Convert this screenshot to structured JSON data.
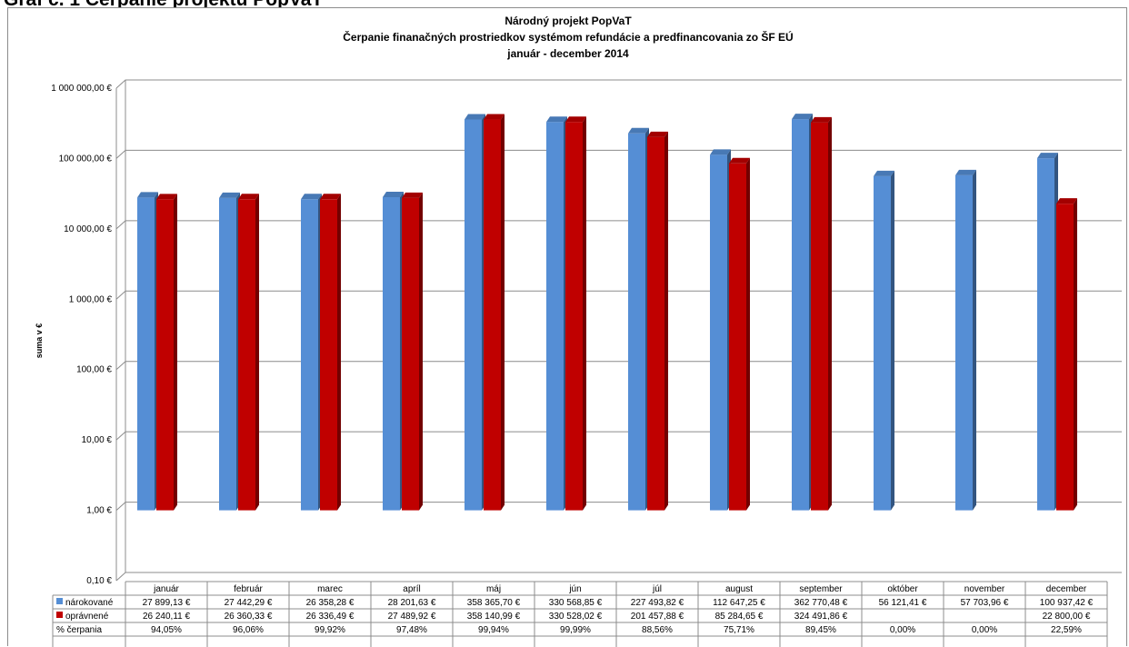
{
  "page": {
    "heading": "Graf č. 1 Čerpanie projektu PopVaT"
  },
  "chart_data": {
    "type": "bar",
    "title": "Národný  projekt  PopVaT",
    "subtitle": "Čerpanie finanačných prostriedkov systémom refundácie a predfinancovania zo ŠF EÚ",
    "period": "január - december 2014",
    "ylabel": "suma v €",
    "yscale": "log",
    "ylim": [
      0.1,
      1000000
    ],
    "yticks": [
      {
        "value": 1000000,
        "label": "1 000 000,00 €"
      },
      {
        "value": 100000,
        "label": "100 000,00 €"
      },
      {
        "value": 10000,
        "label": "10 000,00 €"
      },
      {
        "value": 1000,
        "label": "1 000,00 €"
      },
      {
        "value": 100,
        "label": "100,00 €"
      },
      {
        "value": 10,
        "label": "10,00 €"
      },
      {
        "value": 1,
        "label": "1,00 €"
      },
      {
        "value": 0.1,
        "label": "0,10 €"
      }
    ],
    "grid": true,
    "legend": "data-table",
    "categories": [
      "január",
      "február",
      "marec",
      "apríl",
      "máj",
      "jún",
      "júl",
      "august",
      "september",
      "október",
      "november",
      "december"
    ],
    "series": [
      {
        "name": "nárokované",
        "color": "#558ED5",
        "values": [
          27899.13,
          27442.29,
          26358.28,
          28201.63,
          358365.7,
          330568.85,
          227493.82,
          112647.25,
          362770.48,
          56121.41,
          57703.96,
          100937.42
        ],
        "labels": [
          "27 899,13 €",
          "27 442,29 €",
          "26 358,28 €",
          "28 201,63 €",
          "358 365,70 €",
          "330 568,85 €",
          "227 493,82 €",
          "112 647,25 €",
          "362 770,48 €",
          "56 121,41 €",
          "57 703,96 €",
          "100 937,42 €"
        ]
      },
      {
        "name": "oprávnené",
        "color": "#C00000",
        "values": [
          26240.11,
          26360.33,
          26336.49,
          27489.92,
          358140.99,
          330528.02,
          201457.88,
          85284.65,
          324491.86,
          null,
          null,
          22800.0
        ],
        "labels": [
          "26 240,11 €",
          "26 360,33 €",
          "26 336,49 €",
          "27 489,92 €",
          "358 140,99 €",
          "330 528,02 €",
          "201 457,88 €",
          "85 284,65 €",
          "324 491,86 €",
          "",
          "",
          "22 800,00 €"
        ]
      }
    ],
    "percent_row": {
      "name": "% čerpania",
      "labels": [
        "94,05%",
        "96,06%",
        "99,92%",
        "97,48%",
        "99,94%",
        "99,99%",
        "88,56%",
        "75,71%",
        "89,45%",
        "0,00%",
        "0,00%",
        "22,59%"
      ]
    }
  }
}
